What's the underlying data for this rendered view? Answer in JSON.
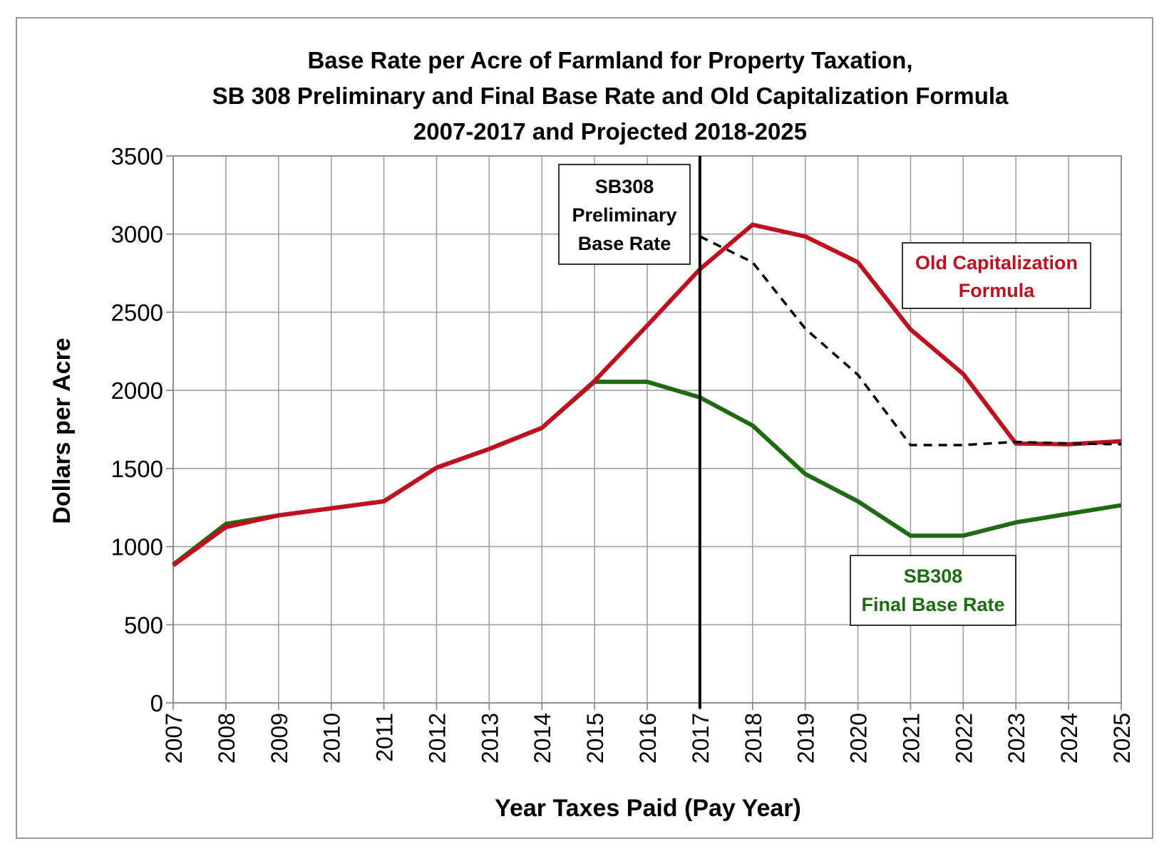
{
  "chart_data": {
    "type": "line",
    "title_lines": [
      "Base Rate per Acre of Farmland for Property Taxation,",
      "SB 308 Preliminary and Final Base Rate and Old Capitalization Formula",
      "2007-2017 and Projected 2018-2025"
    ],
    "xlabel": "Year Taxes Paid (Pay Year)",
    "ylabel": "Dollars per Acre",
    "ylim": [
      0,
      3500
    ],
    "yticks": [
      "0",
      "500",
      "1000",
      "1500",
      "2000",
      "2500",
      "3000",
      "3500"
    ],
    "x": [
      "2007",
      "2008",
      "2009",
      "2010",
      "2011",
      "2012",
      "2013",
      "2014",
      "2015",
      "2016",
      "2017",
      "2018",
      "2019",
      "2020",
      "2021",
      "2022",
      "2023",
      "2024",
      "2025"
    ],
    "grid": true,
    "vertical_line_at": "2017",
    "series": [
      {
        "name": "SB308 Final Base Rate",
        "color": "#1e6b12",
        "style": "solid",
        "values": [
          885,
          1145,
          1200,
          1245,
          1290,
          1505,
          1625,
          1760,
          2055,
          2055,
          1955,
          1775,
          1465,
          1290,
          1070,
          1070,
          1155,
          1210,
          1265
        ]
      },
      {
        "name": "Old Capitalization Formula",
        "color": "#c0101f",
        "style": "solid",
        "values": [
          880,
          1125,
          1200,
          1245,
          1290,
          1505,
          1625,
          1760,
          2060,
          2415,
          2775,
          3060,
          2985,
          2820,
          2390,
          2105,
          1660,
          1655,
          1675
        ]
      },
      {
        "name": "SB308 Preliminary Base Rate",
        "color": "#000000",
        "style": "dashed",
        "start_index": 10,
        "values": [
          null,
          null,
          null,
          null,
          null,
          null,
          null,
          null,
          null,
          null,
          2985,
          2820,
          2395,
          2100,
          1650,
          1650,
          1670,
          1660,
          1655
        ]
      }
    ],
    "annotations": [
      {
        "lines": [
          "SB308",
          "Preliminary",
          "Base Rate"
        ],
        "color": "#000000"
      },
      {
        "lines": [
          "Old Capitalization",
          "Formula"
        ],
        "color": "#c0101f"
      },
      {
        "lines": [
          "SB308",
          "Final Base Rate"
        ],
        "color": "#1e6b12"
      }
    ]
  }
}
